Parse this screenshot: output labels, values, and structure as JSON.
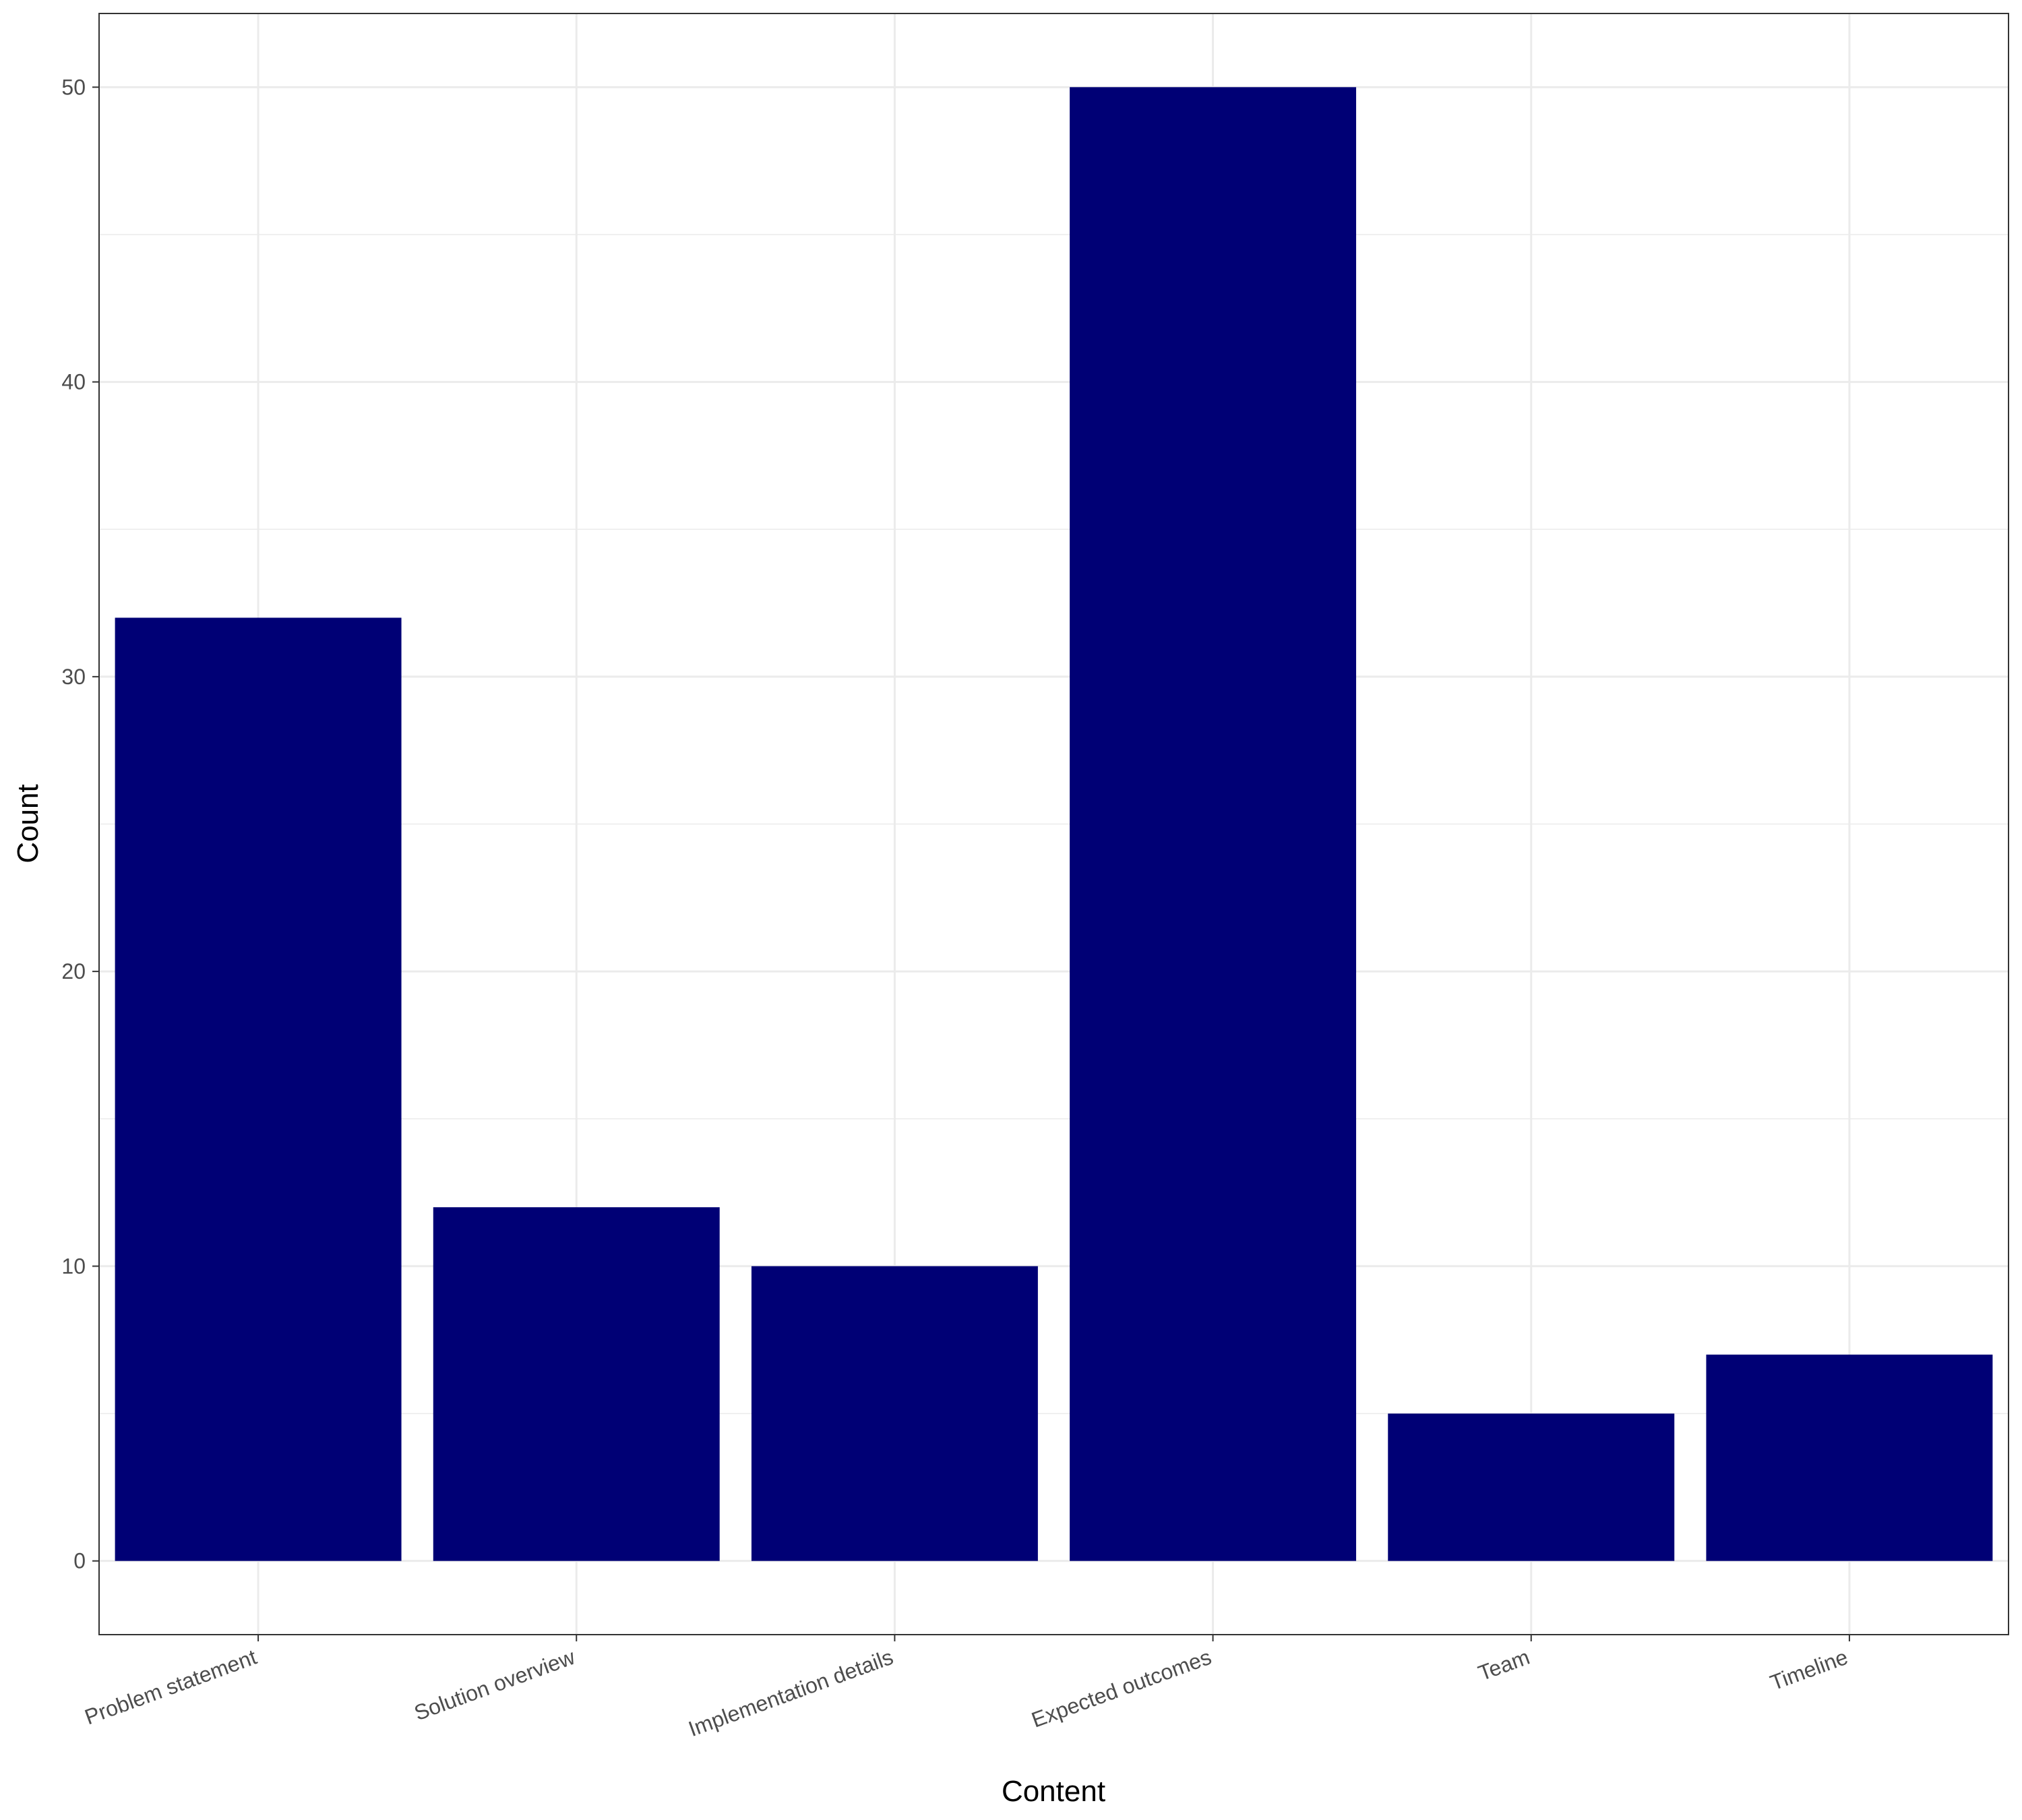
{
  "chart_data": {
    "type": "bar",
    "title": "",
    "xlabel": "Content",
    "ylabel": "Count",
    "categories": [
      "Problem statement",
      "Solution overview",
      "Implementation details",
      "Expected outcomes",
      "Team",
      "Timeline"
    ],
    "values": [
      32,
      12,
      10,
      50,
      5,
      7
    ],
    "ylim": [
      -2.5,
      52.5
    ],
    "yticks": [
      0,
      10,
      20,
      30,
      40,
      50
    ],
    "grid": true,
    "legend": "none",
    "colors": {
      "bar": "#000075",
      "grid": "#ebebeb",
      "panel_border": "#333333",
      "tick_label": "#4d4d4d",
      "axis_title": "#000000"
    }
  }
}
